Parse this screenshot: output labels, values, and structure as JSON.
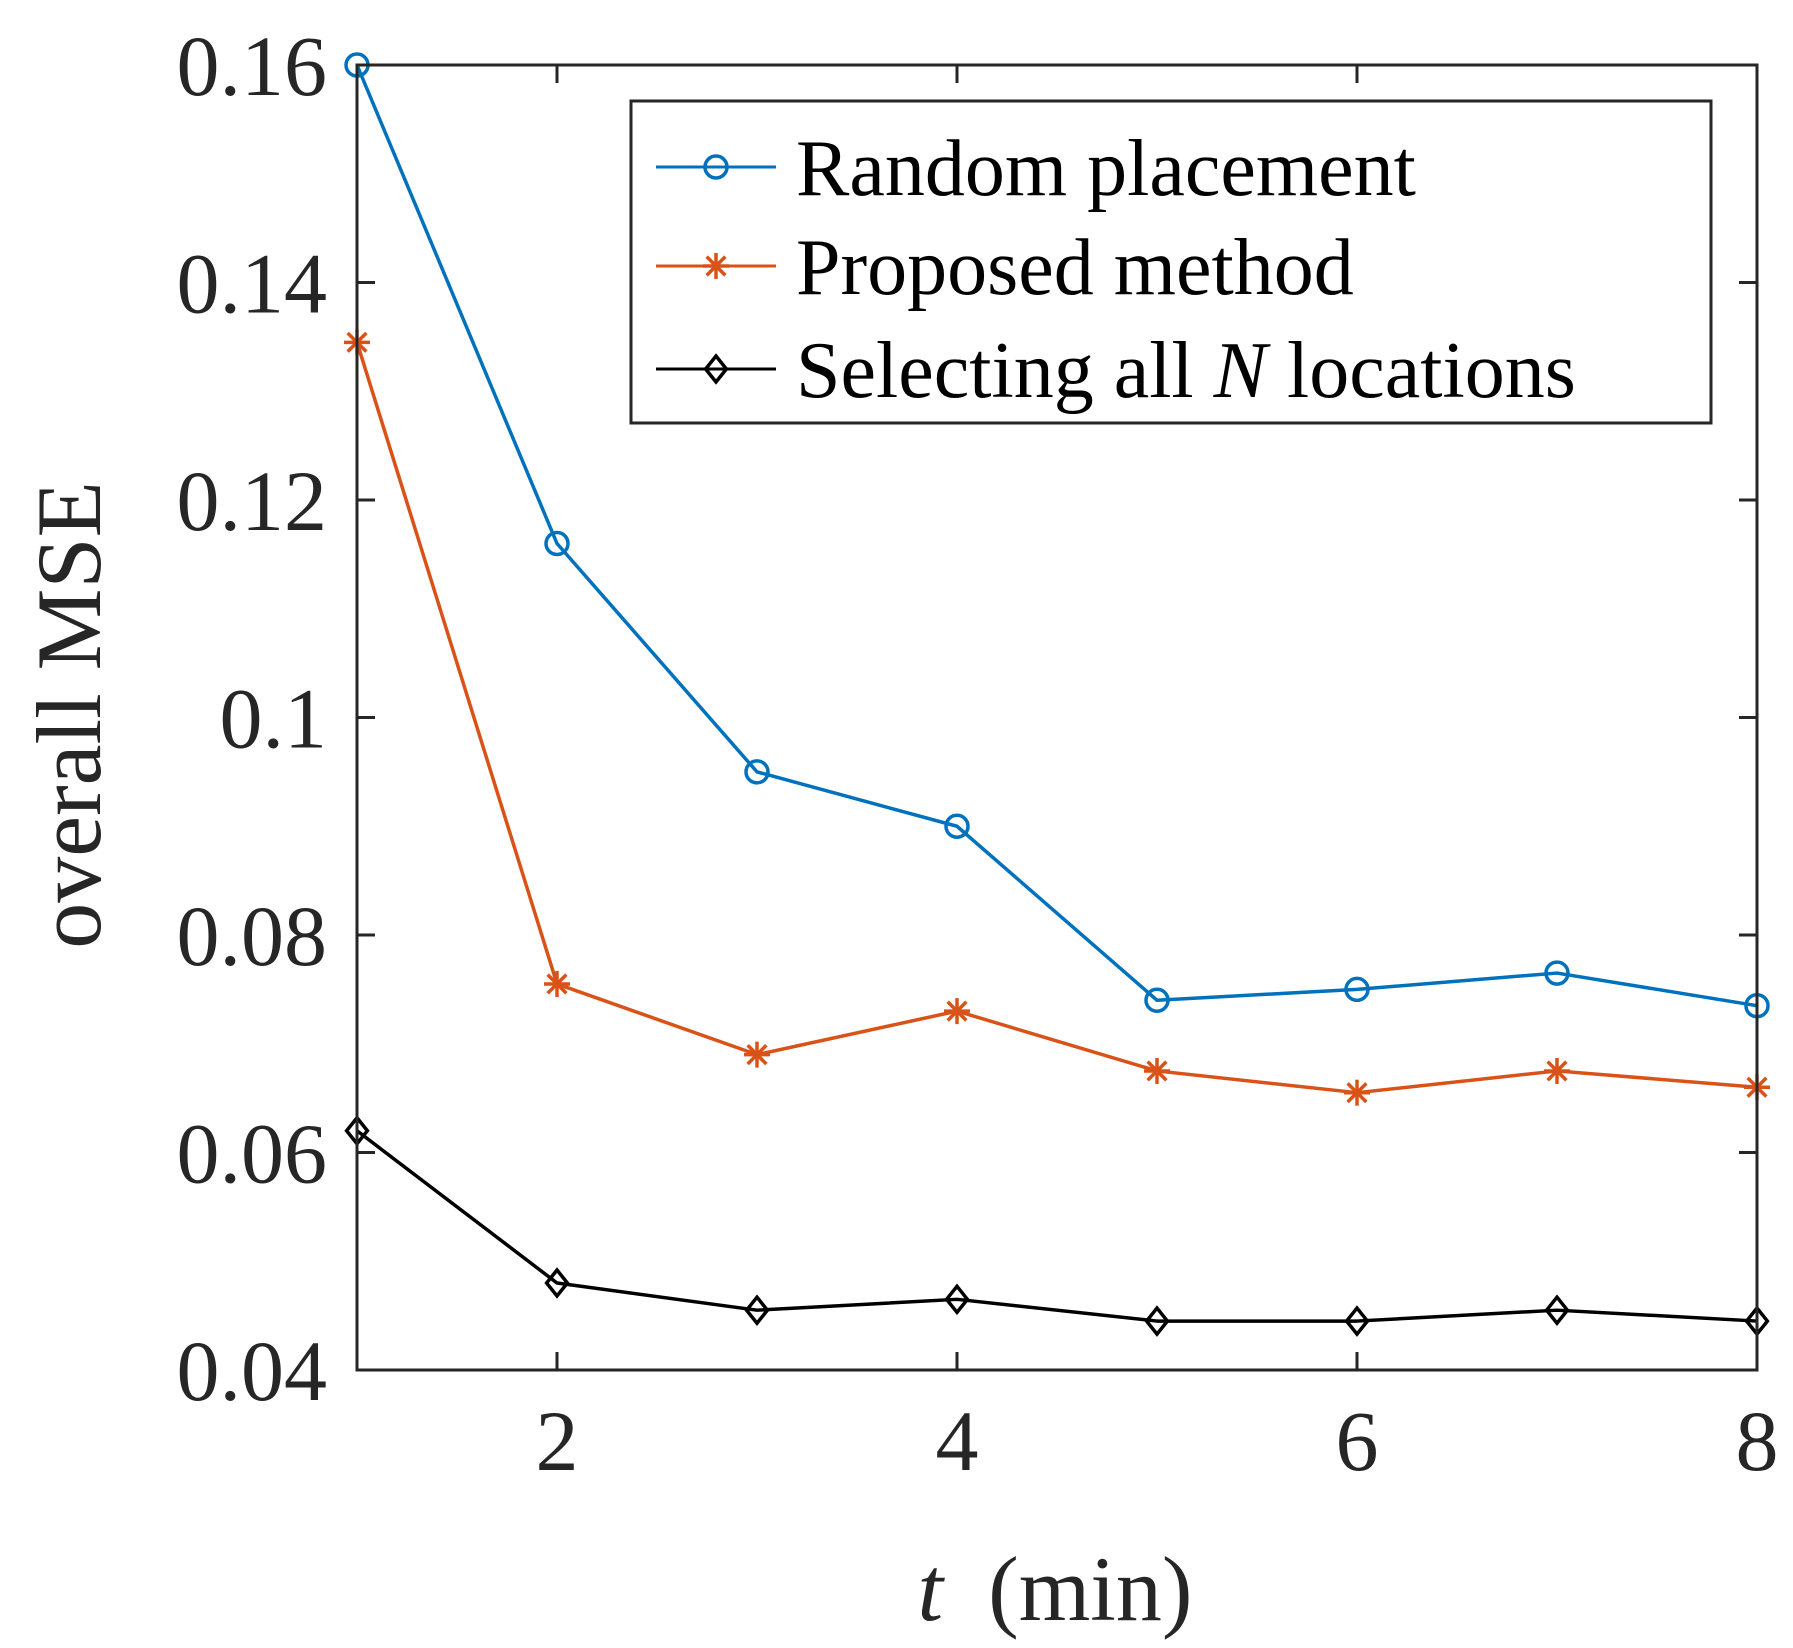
{
  "chart_data": {
    "type": "line",
    "title": "",
    "xlabel": "(min)",
    "xlabel_var": "t",
    "ylabel": "overall MSE",
    "xlim": [
      1,
      8
    ],
    "ylim": [
      0.04,
      0.16
    ],
    "xticks": [
      2,
      4,
      6,
      8
    ],
    "xtick_labels": [
      "2",
      "4",
      "6",
      "8"
    ],
    "yticks": [
      0.04,
      0.06,
      0.08,
      0.1,
      0.12,
      0.14,
      0.16
    ],
    "ytick_labels": [
      "0.04",
      "0.06",
      "0.08",
      "0.1",
      "0.12",
      "0.14",
      "0.16"
    ],
    "grid": false,
    "legend_position": "top-right",
    "x": [
      1,
      2,
      3,
      4,
      5,
      6,
      7,
      8
    ],
    "series": [
      {
        "name": "Random placement",
        "color": "#0072BD",
        "marker": "circle",
        "values": [
          0.16,
          0.116,
          0.095,
          0.09,
          0.074,
          0.075,
          0.0765,
          0.0735
        ]
      },
      {
        "name": "Proposed method",
        "color": "#D95319",
        "marker": "asterisk",
        "values": [
          0.1345,
          0.0755,
          0.069,
          0.073,
          0.0675,
          0.0655,
          0.0675,
          0.066
        ]
      },
      {
        "name": "Selecting all N locations",
        "legend_prefix": "Selecting all ",
        "legend_italic": "N",
        "legend_suffix": " locations",
        "color": "#000000",
        "marker": "diamond",
        "values": [
          0.062,
          0.048,
          0.0455,
          0.0465,
          0.0445,
          0.0445,
          0.0455,
          0.0445
        ]
      }
    ]
  }
}
